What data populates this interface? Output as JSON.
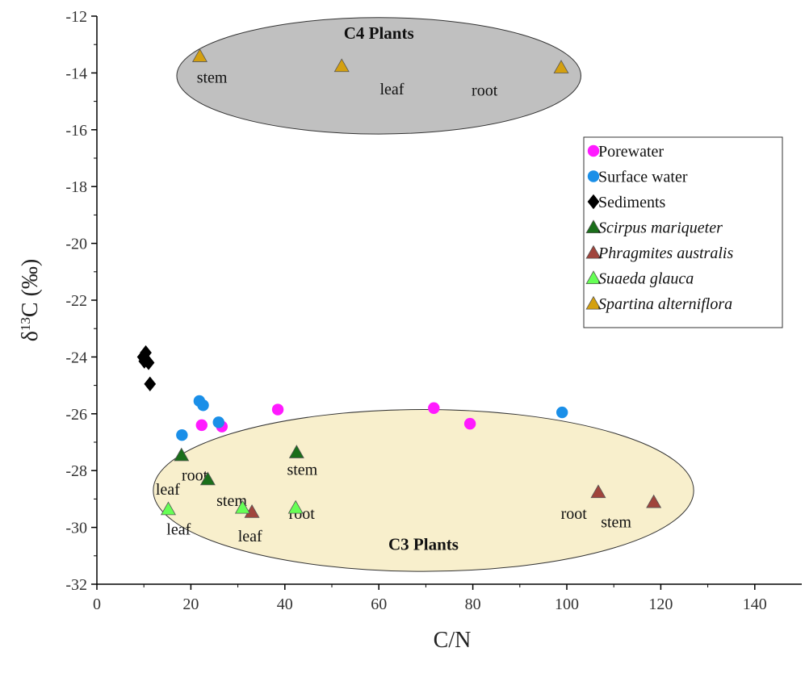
{
  "chart_data": {
    "type": "scatter",
    "xlabel": "C/N",
    "ylabel_main": "δ",
    "ylabel_sup": "13",
    "ylabel_rest": "C (‰)",
    "xlim": [
      0,
      150
    ],
    "ylim": [
      -32,
      -12
    ],
    "x_ticks": [
      0,
      20,
      40,
      60,
      80,
      100,
      120,
      140
    ],
    "y_ticks": [
      -12,
      -14,
      -16,
      -18,
      -20,
      -22,
      -24,
      -26,
      -28,
      -30,
      -32
    ],
    "legend_position": "right",
    "series": [
      {
        "name": "Porewater",
        "marker": "circle",
        "color": "#ff1aff",
        "italic": false,
        "points": [
          [
            22.3,
            -26.4
          ],
          [
            26.6,
            -26.45
          ],
          [
            38.5,
            -25.85
          ],
          [
            71.7,
            -25.8
          ],
          [
            79.4,
            -26.35
          ]
        ]
      },
      {
        "name": "Surface water",
        "marker": "circle",
        "color": "#1a8fe8",
        "italic": false,
        "points": [
          [
            18.1,
            -26.75
          ],
          [
            21.8,
            -25.55
          ],
          [
            22.6,
            -25.7
          ],
          [
            25.9,
            -26.3
          ],
          [
            99.0,
            -25.95
          ]
        ]
      },
      {
        "name": "Sediments",
        "marker": "diamond",
        "color": "#000000",
        "italic": false,
        "points": [
          [
            10.1,
            -24.15
          ],
          [
            10.4,
            -23.85
          ],
          [
            11.0,
            -24.2
          ],
          [
            11.3,
            -24.95
          ],
          [
            9.8,
            -24.0
          ]
        ]
      },
      {
        "name": "Scirpus mariqueter",
        "marker": "triangle",
        "color": "#1a6e1a",
        "italic": true,
        "points": [
          [
            18.0,
            -27.45
          ],
          [
            23.6,
            -28.3
          ],
          [
            42.5,
            -27.35
          ]
        ]
      },
      {
        "name": "Phragmites australis",
        "marker": "triangle",
        "color": "#a0443c",
        "italic": true,
        "points": [
          [
            33.0,
            -29.45
          ],
          [
            106.7,
            -28.75
          ],
          [
            118.5,
            -29.1
          ]
        ]
      },
      {
        "name": "Suaeda glauca",
        "marker": "triangle",
        "color": "#66ff55",
        "italic": true,
        "points": [
          [
            15.2,
            -29.35
          ],
          [
            31.0,
            -29.3
          ],
          [
            42.3,
            -29.3
          ]
        ]
      },
      {
        "name": "Spartina alterniflora",
        "marker": "triangle",
        "color": "#d4a010",
        "italic": true,
        "points": [
          [
            21.9,
            -13.4
          ],
          [
            52.1,
            -13.75
          ],
          [
            98.8,
            -13.8
          ]
        ]
      }
    ],
    "regions": [
      {
        "label": "C4 Plants",
        "fill": "#c0c0c0",
        "cx": 60,
        "cy": -14.1,
        "rx": 43,
        "ry": 2.05,
        "label_x": 60,
        "label_y": -12.6
      },
      {
        "label": "C3 Plants",
        "fill": "#f8efcc",
        "cx": 69.5,
        "cy": -28.7,
        "rx": 57.5,
        "ry": 2.85,
        "label_x": 69.5,
        "label_y": -30.6
      }
    ],
    "annotations": [
      {
        "text": "stem",
        "x": 24.5,
        "y": -14.15
      },
      {
        "text": "leaf",
        "x": 62.8,
        "y": -14.55
      },
      {
        "text": "root",
        "x": 82.5,
        "y": -14.6
      },
      {
        "text": "root",
        "x": 20.8,
        "y": -28.15
      },
      {
        "text": "leaf",
        "x": 15.1,
        "y": -28.65
      },
      {
        "text": "stem",
        "x": 43.7,
        "y": -27.95
      },
      {
        "text": "stem",
        "x": 28.7,
        "y": -29.05
      },
      {
        "text": "root",
        "x": 43.6,
        "y": -29.5
      },
      {
        "text": "leaf",
        "x": 17.4,
        "y": -30.05
      },
      {
        "text": "leaf",
        "x": 32.6,
        "y": -30.3
      },
      {
        "text": "root",
        "x": 101.5,
        "y": -29.5
      },
      {
        "text": "stem",
        "x": 110.5,
        "y": -29.8
      }
    ]
  }
}
